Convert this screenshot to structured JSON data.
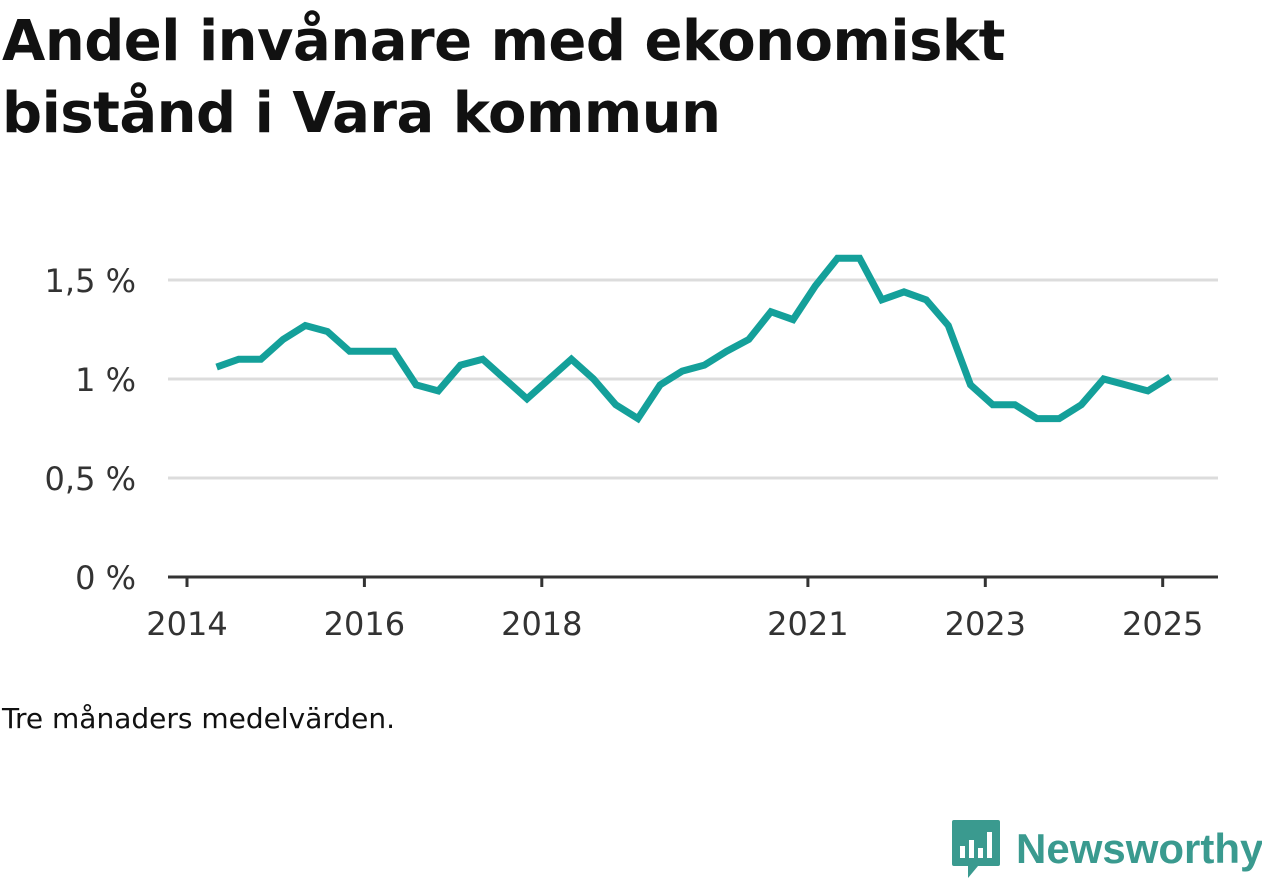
{
  "title": "Andel invånare med ekonomiskt bistånd i Vara kommun",
  "note": "Tre månaders medelvärden.",
  "brand": {
    "name": "Newsworthy",
    "icon": "newsworthy-logo-icon",
    "color": "#3a9a8f"
  },
  "chart_data": {
    "type": "line",
    "title": "Andel invånare med ekonomiskt bistånd i Vara kommun",
    "xlabel": "",
    "ylabel": "",
    "x_ticks": [
      "2014",
      "2016",
      "2018",
      "2021",
      "2023",
      "2025"
    ],
    "y_ticks": [
      "0 %",
      "0,5 %",
      "1 %",
      "1,5 %"
    ],
    "ylim": [
      0,
      1.6
    ],
    "grid": true,
    "line_color": "#14a09a",
    "series": [
      {
        "values": [
          [
            "2014-05",
            1.06
          ],
          [
            "2014-08",
            1.1
          ],
          [
            "2014-11",
            1.1
          ],
          [
            "2015-02",
            1.2
          ],
          [
            "2015-05",
            1.27
          ],
          [
            "2015-08",
            1.24
          ],
          [
            "2015-11",
            1.14
          ],
          [
            "2016-02",
            1.14
          ],
          [
            "2016-05",
            1.14
          ],
          [
            "2016-08",
            0.97
          ],
          [
            "2016-11",
            0.94
          ],
          [
            "2017-02",
            1.07
          ],
          [
            "2017-05",
            1.1
          ],
          [
            "2017-08",
            1.0
          ],
          [
            "2017-11",
            0.9
          ],
          [
            "2018-02",
            1.0
          ],
          [
            "2018-05",
            1.1
          ],
          [
            "2018-08",
            1.0
          ],
          [
            "2018-11",
            0.87
          ],
          [
            "2019-02",
            0.8
          ],
          [
            "2019-05",
            0.97
          ],
          [
            "2019-08",
            1.04
          ],
          [
            "2019-11",
            1.07
          ],
          [
            "2020-02",
            1.14
          ],
          [
            "2020-05",
            1.2
          ],
          [
            "2020-08",
            1.34
          ],
          [
            "2020-11",
            1.3
          ],
          [
            "2021-02",
            1.47
          ],
          [
            "2021-05",
            1.61
          ],
          [
            "2021-08",
            1.61
          ],
          [
            "2021-11",
            1.4
          ],
          [
            "2022-02",
            1.44
          ],
          [
            "2022-05",
            1.4
          ],
          [
            "2022-08",
            1.27
          ],
          [
            "2022-11",
            0.97
          ],
          [
            "2023-02",
            0.87
          ],
          [
            "2023-05",
            0.87
          ],
          [
            "2023-08",
            0.8
          ],
          [
            "2023-11",
            0.8
          ],
          [
            "2024-02",
            0.87
          ],
          [
            "2024-05",
            1.0
          ],
          [
            "2024-08",
            0.97
          ],
          [
            "2024-11",
            0.94
          ],
          [
            "2025-02",
            1.01
          ]
        ]
      }
    ]
  }
}
